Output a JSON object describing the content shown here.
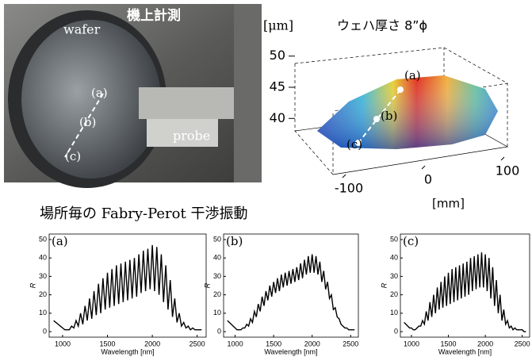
{
  "photo": {
    "wafer": "wafer",
    "caption": "機上計測",
    "a": "(a)",
    "b": "(b)",
    "c": "(c)",
    "probe": "probe"
  },
  "surface": {
    "unit": "[μm]",
    "title": "ウェハ厚さ  8”ϕ",
    "zlim": [
      38,
      52
    ],
    "zticks": [
      50,
      45,
      40
    ],
    "xlim": [
      -100,
      100
    ],
    "xticks": [
      -100,
      0,
      100
    ],
    "xlabel": "[mm]",
    "a": "(a)",
    "b": "(b)",
    "c": "(c)"
  },
  "heading": "場所毎の Fabry-Perot 干渉振動",
  "chart_data": [
    {
      "type": "line",
      "title": "(a)",
      "xlabel": "Wavelength [nm]",
      "ylabel": "R",
      "color": "#000000",
      "xlim": [
        850,
        2600
      ],
      "xticks": [
        1000,
        1500,
        2000,
        2500
      ],
      "ylim": [
        -3,
        53
      ],
      "yticks": [
        0,
        10,
        20,
        30,
        40,
        50
      ],
      "x": [
        900,
        925,
        950,
        975,
        1000,
        1025,
        1050,
        1075,
        1100,
        1125,
        1150,
        1175,
        1200,
        1225,
        1250,
        1275,
        1300,
        1325,
        1350,
        1375,
        1400,
        1425,
        1450,
        1475,
        1500,
        1525,
        1550,
        1575,
        1600,
        1625,
        1650,
        1675,
        1700,
        1725,
        1750,
        1775,
        1800,
        1825,
        1850,
        1875,
        1900,
        1925,
        1950,
        1975,
        2000,
        2025,
        2050,
        2075,
        2100,
        2125,
        2150,
        2175,
        2200,
        2225,
        2250,
        2275,
        2300,
        2325,
        2350,
        2375,
        2400,
        2425,
        2450,
        2475,
        2500,
        2525,
        2550
      ],
      "values": [
        6,
        5,
        4,
        3,
        2,
        1,
        1,
        1,
        3,
        2,
        6,
        3,
        10,
        4,
        14,
        6,
        18,
        7,
        22,
        9,
        26,
        10,
        29,
        12,
        32,
        13,
        34,
        14,
        36,
        15,
        37,
        16,
        38,
        17,
        39,
        18,
        40,
        19,
        42,
        21,
        44,
        22,
        45,
        23,
        47,
        22,
        46,
        20,
        42,
        16,
        36,
        12,
        28,
        8,
        18,
        5,
        10,
        3,
        5,
        2,
        3,
        1,
        2,
        1,
        1,
        1,
        1
      ]
    },
    {
      "type": "line",
      "title": "(b)",
      "xlabel": "Wavelength [nm]",
      "ylabel": "R",
      "color": "#000000",
      "xlim": [
        850,
        2600
      ],
      "xticks": [
        1000,
        1500,
        2000,
        2500
      ],
      "ylim": [
        -3,
        53
      ],
      "yticks": [
        0,
        10,
        20,
        30,
        40,
        50
      ],
      "x": [
        900,
        925,
        950,
        975,
        1000,
        1025,
        1050,
        1075,
        1100,
        1125,
        1150,
        1175,
        1200,
        1225,
        1250,
        1275,
        1300,
        1325,
        1350,
        1375,
        1400,
        1425,
        1450,
        1475,
        1500,
        1525,
        1550,
        1575,
        1600,
        1625,
        1650,
        1675,
        1700,
        1725,
        1750,
        1775,
        1800,
        1825,
        1850,
        1875,
        1900,
        1925,
        1950,
        1975,
        2000,
        2025,
        2050,
        2075,
        2100,
        2125,
        2150,
        2175,
        2200,
        2225,
        2250,
        2275,
        2300,
        2325,
        2350,
        2375,
        2400,
        2425,
        2450,
        2475,
        2500,
        2525,
        2550
      ],
      "values": [
        6,
        5,
        4,
        3,
        2,
        1,
        1,
        1,
        2,
        2,
        4,
        3,
        7,
        5,
        11,
        8,
        15,
        11,
        19,
        14,
        22,
        17,
        25,
        19,
        27,
        21,
        29,
        22,
        31,
        24,
        32,
        25,
        33,
        26,
        34,
        27,
        35,
        28,
        37,
        29,
        39,
        31,
        41,
        32,
        42,
        32,
        41,
        31,
        38,
        27,
        33,
        23,
        27,
        18,
        20,
        12,
        13,
        8,
        7,
        4,
        3,
        2,
        2,
        1,
        1,
        1,
        1
      ]
    },
    {
      "type": "line",
      "title": "(c)",
      "xlabel": "Wavelength [nm]",
      "ylabel": "R",
      "color": "#000000",
      "xlim": [
        850,
        2600
      ],
      "xticks": [
        1000,
        1500,
        2000,
        2500
      ],
      "ylim": [
        -3,
        53
      ],
      "yticks": [
        0,
        10,
        20,
        30,
        40,
        50
      ],
      "x": [
        900,
        925,
        950,
        975,
        1000,
        1025,
        1050,
        1075,
        1100,
        1125,
        1150,
        1175,
        1200,
        1225,
        1250,
        1275,
        1300,
        1325,
        1350,
        1375,
        1400,
        1425,
        1450,
        1475,
        1500,
        1525,
        1550,
        1575,
        1600,
        1625,
        1650,
        1675,
        1700,
        1725,
        1750,
        1775,
        1800,
        1825,
        1850,
        1875,
        1900,
        1925,
        1950,
        1975,
        2000,
        2025,
        2050,
        2075,
        2100,
        2125,
        2150,
        2175,
        2200,
        2225,
        2250,
        2275,
        2300,
        2325,
        2350,
        2375,
        2400,
        2425,
        2450,
        2475,
        2500,
        2525,
        2550
      ],
      "values": [
        5,
        4,
        3,
        2,
        2,
        1,
        1,
        2,
        3,
        3,
        6,
        4,
        11,
        6,
        16,
        8,
        20,
        10,
        24,
        12,
        27,
        13,
        30,
        14,
        32,
        15,
        34,
        16,
        35,
        17,
        36,
        18,
        37,
        19,
        38,
        20,
        40,
        22,
        41,
        23,
        42,
        24,
        43,
        24,
        42,
        22,
        40,
        18,
        35,
        14,
        28,
        10,
        20,
        6,
        12,
        4,
        6,
        2,
        3,
        1,
        2,
        1,
        1,
        1,
        1,
        0,
        0
      ]
    }
  ]
}
